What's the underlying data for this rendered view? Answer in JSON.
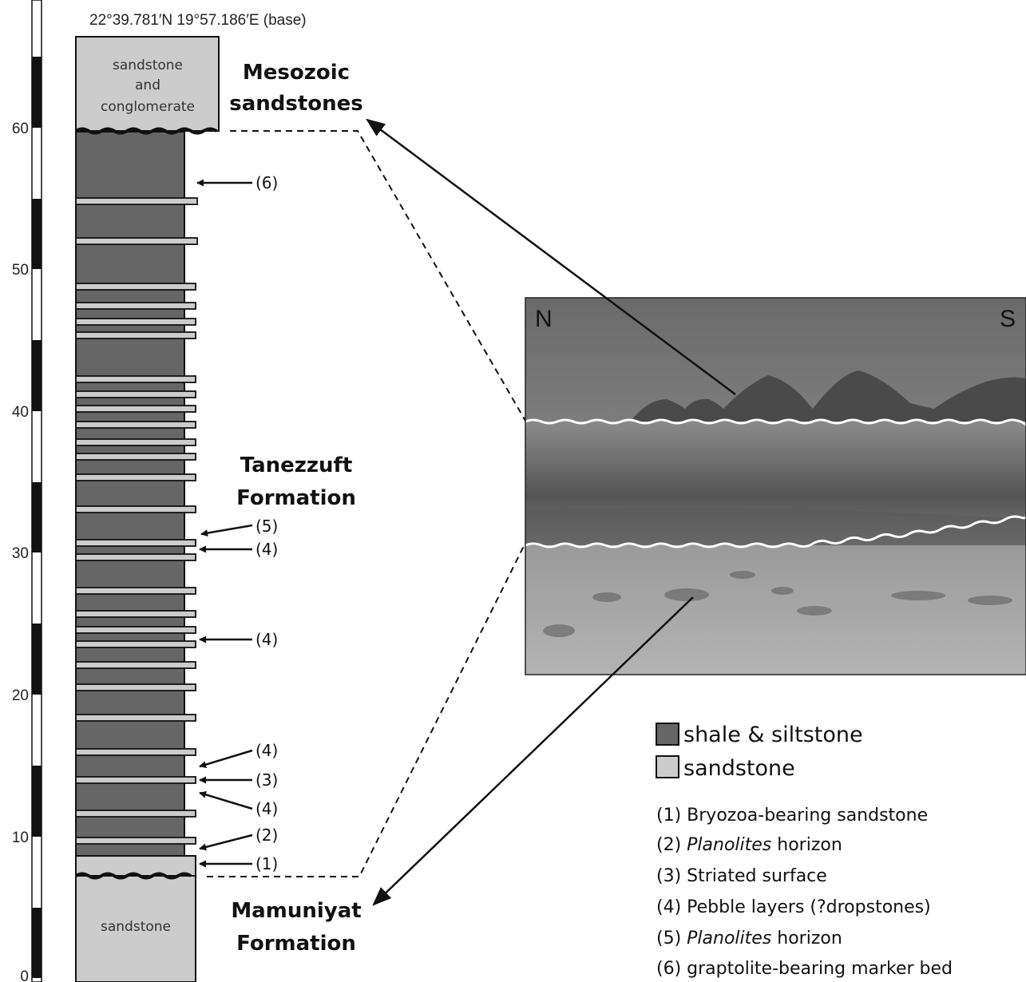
{
  "coordinates": "22°39.781′N  19°57.186′E (base)",
  "scale_ticks": [
    "0",
    "10",
    "20",
    "30",
    "40",
    "50",
    "60"
  ],
  "units": {
    "base_unit": "sandstone",
    "top_unit_lines": [
      "sandstone",
      "and",
      "conglomerate"
    ]
  },
  "formations": {
    "mesozoic_lines": [
      "Mesozoic",
      "sandstones"
    ],
    "tanezzuft_lines": [
      "Tanezzuft",
      "Formation"
    ],
    "mamuniyat_lines": [
      "Mamuniyat",
      "Formation"
    ]
  },
  "marker_labels": [
    "(6)",
    "(5)",
    "(4)",
    "(4)",
    "(4)",
    "(3)",
    "(4)",
    "(2)",
    "(1)"
  ],
  "photo": {
    "north_label": "N",
    "south_label": "S"
  },
  "legend": {
    "shale": "shale & siltstone",
    "sandstone": "sandstone",
    "shale_color": "#666666",
    "sandstone_color": "#cccccc"
  },
  "notes": [
    {
      "num": "(1) ",
      "italic": "",
      "rest": "Bryozoa-bearing sandstone"
    },
    {
      "num": "(2) ",
      "italic": "Planolites",
      "rest": " horizon"
    },
    {
      "num": "(3) ",
      "italic": "",
      "rest": "Striated surface"
    },
    {
      "num": "(4) ",
      "italic": "",
      "rest": "Pebble layers (?dropstones)"
    },
    {
      "num": "(5) ",
      "italic": "Planolites",
      "rest": " horizon"
    },
    {
      "num": "(6) ",
      "italic": "",
      "rest": "graptolite-bearing marker bed"
    }
  ]
}
